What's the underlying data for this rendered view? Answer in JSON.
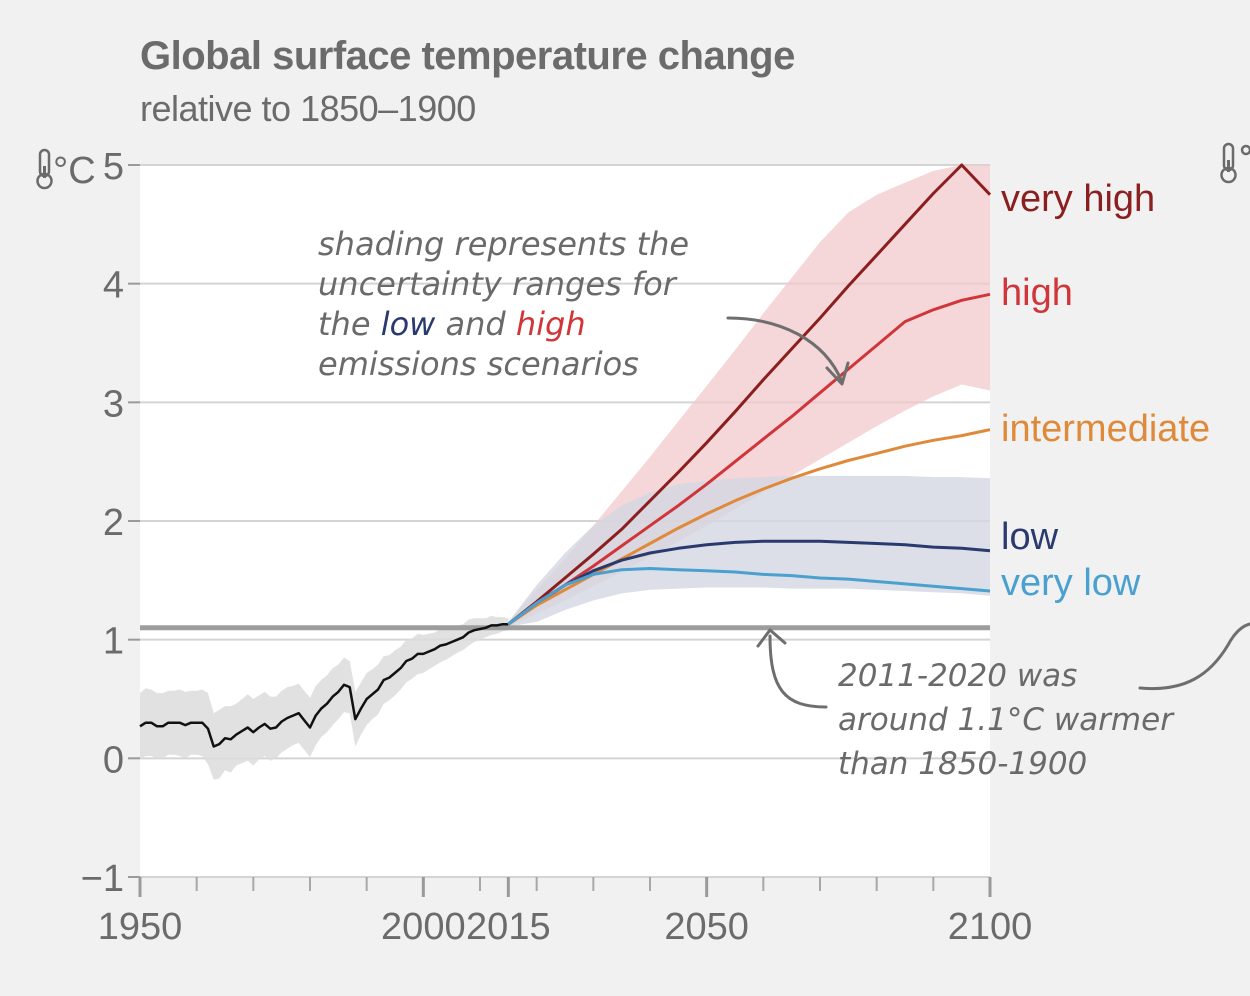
{
  "chart_data": {
    "type": "line",
    "title": "Global surface temperature change",
    "subtitle": "relative to 1850–1900",
    "ylabel_unit": "°C",
    "xlim": [
      1950,
      2100
    ],
    "ylim": [
      -1,
      5
    ],
    "yticks": [
      {
        "value": -1,
        "label": "−1"
      },
      {
        "value": 0,
        "label": "0"
      },
      {
        "value": 1,
        "label": "1"
      },
      {
        "value": 2,
        "label": "2"
      },
      {
        "value": 3,
        "label": "3"
      },
      {
        "value": 4,
        "label": "4"
      },
      {
        "value": 5,
        "label": "5"
      }
    ],
    "xticks_major": [
      {
        "value": 1950,
        "label": "1950"
      },
      {
        "value": 2000,
        "label": "2000"
      },
      {
        "value": 2015,
        "label": "2015"
      },
      {
        "value": 2050,
        "label": "2050"
      },
      {
        "value": 2100,
        "label": "2100"
      }
    ],
    "xticks_minor": [
      1960,
      1970,
      1980,
      1990,
      2010,
      2020,
      2030,
      2040,
      2060,
      2070,
      2080,
      2090
    ],
    "grid": true,
    "reference_line": {
      "value": 1.1
    },
    "historical": {
      "x": [
        1950,
        1951,
        1952,
        1953,
        1954,
        1955,
        1956,
        1957,
        1958,
        1959,
        1960,
        1961,
        1962,
        1963,
        1964,
        1965,
        1966,
        1967,
        1968,
        1969,
        1970,
        1971,
        1972,
        1973,
        1974,
        1975,
        1976,
        1977,
        1978,
        1979,
        1980,
        1981,
        1982,
        1983,
        1984,
        1985,
        1986,
        1987,
        1988,
        1989,
        1990,
        1991,
        1992,
        1993,
        1994,
        1995,
        1996,
        1997,
        1998,
        1999,
        2000,
        2001,
        2002,
        2003,
        2004,
        2005,
        2006,
        2007,
        2008,
        2009,
        2010,
        2011,
        2012,
        2013,
        2014,
        2015
      ],
      "y": [
        0.27,
        0.3,
        0.3,
        0.27,
        0.27,
        0.3,
        0.3,
        0.3,
        0.28,
        0.3,
        0.3,
        0.3,
        0.25,
        0.1,
        0.12,
        0.17,
        0.16,
        0.2,
        0.23,
        0.26,
        0.22,
        0.26,
        0.29,
        0.25,
        0.26,
        0.31,
        0.34,
        0.36,
        0.38,
        0.32,
        0.26,
        0.36,
        0.42,
        0.46,
        0.52,
        0.56,
        0.62,
        0.6,
        0.33,
        0.42,
        0.5,
        0.54,
        0.58,
        0.66,
        0.68,
        0.72,
        0.76,
        0.82,
        0.84,
        0.88,
        0.88,
        0.9,
        0.92,
        0.95,
        0.96,
        0.98,
        1.0,
        1.02,
        1.06,
        1.08,
        1.09,
        1.1,
        1.12,
        1.12,
        1.13,
        1.13
      ],
      "band_lower": [
        -0.01,
        0.02,
        0.02,
        0.0,
        0.0,
        0.03,
        0.03,
        0.02,
        0.0,
        0.03,
        0.03,
        0.02,
        -0.05,
        -0.18,
        -0.17,
        -0.1,
        -0.12,
        -0.06,
        -0.04,
        -0.02,
        -0.06,
        -0.01,
        0.02,
        -0.02,
        0.0,
        0.05,
        0.08,
        0.11,
        0.13,
        0.07,
        0.01,
        0.11,
        0.18,
        0.22,
        0.28,
        0.33,
        0.39,
        0.38,
        0.1,
        0.2,
        0.28,
        0.33,
        0.37,
        0.46,
        0.49,
        0.53,
        0.58,
        0.64,
        0.67,
        0.71,
        0.72,
        0.75,
        0.78,
        0.81,
        0.83,
        0.86,
        0.89,
        0.91,
        0.95,
        0.98,
        1.0,
        1.02,
        1.04,
        1.05,
        1.07,
        1.08
      ],
      "band_upper": [
        0.55,
        0.59,
        0.58,
        0.55,
        0.55,
        0.57,
        0.57,
        0.58,
        0.56,
        0.57,
        0.57,
        0.58,
        0.55,
        0.38,
        0.41,
        0.44,
        0.44,
        0.46,
        0.5,
        0.54,
        0.5,
        0.53,
        0.56,
        0.52,
        0.52,
        0.57,
        0.6,
        0.61,
        0.63,
        0.57,
        0.51,
        0.61,
        0.66,
        0.7,
        0.76,
        0.79,
        0.85,
        0.82,
        0.56,
        0.64,
        0.72,
        0.75,
        0.79,
        0.86,
        0.87,
        0.91,
        0.94,
        1.0,
        1.01,
        1.05,
        1.04,
        1.05,
        1.06,
        1.09,
        1.09,
        1.1,
        1.12,
        1.13,
        1.17,
        1.18,
        1.18,
        1.18,
        1.2,
        1.19,
        1.19,
        1.18
      ]
    },
    "scenario_x": [
      2015,
      2020,
      2025,
      2030,
      2035,
      2040,
      2045,
      2050,
      2055,
      2060,
      2065,
      2070,
      2075,
      2080,
      2085,
      2090,
      2095,
      2100
    ],
    "series": [
      {
        "name": "very high",
        "color": "#8b1e1e",
        "values": [
          1.13,
          1.32,
          1.52,
          1.72,
          1.93,
          2.17,
          2.41,
          2.66,
          2.92,
          3.19,
          3.45,
          3.71,
          3.98,
          4.24,
          4.5,
          4.76,
          5.0,
          4.75
        ]
      },
      {
        "name": "high",
        "color": "#d0353a",
        "values": [
          1.13,
          1.3,
          1.46,
          1.62,
          1.79,
          1.96,
          2.13,
          2.31,
          2.5,
          2.69,
          2.88,
          3.08,
          3.28,
          3.48,
          3.68,
          3.78,
          3.86,
          3.91
        ]
      },
      {
        "name": "intermediate",
        "color": "#df8a3a",
        "values": [
          1.13,
          1.29,
          1.42,
          1.55,
          1.68,
          1.81,
          1.94,
          2.06,
          2.17,
          2.27,
          2.36,
          2.44,
          2.51,
          2.57,
          2.63,
          2.68,
          2.72,
          2.77
        ]
      },
      {
        "name": "low",
        "color": "#2a3a6e",
        "values": [
          1.13,
          1.31,
          1.46,
          1.58,
          1.67,
          1.73,
          1.77,
          1.8,
          1.82,
          1.83,
          1.83,
          1.83,
          1.82,
          1.81,
          1.8,
          1.78,
          1.77,
          1.75
        ]
      },
      {
        "name": "very low",
        "color": "#4aa0cf",
        "values": [
          1.13,
          1.31,
          1.46,
          1.55,
          1.59,
          1.6,
          1.59,
          1.58,
          1.57,
          1.55,
          1.54,
          1.52,
          1.51,
          1.49,
          1.47,
          1.45,
          1.43,
          1.41
        ]
      }
    ],
    "uncertainty_high": {
      "lower": [
        1.11,
        1.22,
        1.33,
        1.45,
        1.57,
        1.7,
        1.83,
        1.96,
        2.1,
        2.24,
        2.38,
        2.52,
        2.66,
        2.8,
        2.93,
        3.05,
        3.15,
        3.1
      ],
      "upper": [
        1.15,
        1.42,
        1.68,
        1.96,
        2.25,
        2.54,
        2.84,
        3.14,
        3.44,
        3.75,
        4.05,
        4.35,
        4.6,
        4.75,
        4.85,
        4.95,
        5.0,
        5.0
      ],
      "color": "#f2c9cc"
    },
    "uncertainty_low": {
      "lower": [
        1.11,
        1.15,
        1.25,
        1.33,
        1.39,
        1.42,
        1.43,
        1.44,
        1.44,
        1.44,
        1.43,
        1.43,
        1.43,
        1.42,
        1.41,
        1.4,
        1.39,
        1.37
      ],
      "upper": [
        1.15,
        1.46,
        1.73,
        1.96,
        2.13,
        2.24,
        2.31,
        2.34,
        2.36,
        2.37,
        2.38,
        2.38,
        2.38,
        2.38,
        2.38,
        2.37,
        2.37,
        2.36
      ],
      "color": "#d3d7e1"
    }
  },
  "annotations": {
    "shading_note": {
      "lines": [
        "shading represents the",
        "uncertainty ranges for"
      ],
      "line3": {
        "a": "the ",
        "low": "low",
        "b": " and ",
        "high": "high"
      },
      "line4": "emissions scenarios"
    },
    "reference_note": {
      "lines": [
        "2011-2020 was",
        "around 1.1°C warmer",
        "than 1850-1900"
      ]
    }
  },
  "colors": {
    "text_grey": "#6b6b6b",
    "plot_bg": "#ffffff",
    "page_bg": "#f1f1f1",
    "low_word": "#2a3a6e",
    "high_word": "#d0353a"
  },
  "icons": [
    "thermometer-icon"
  ]
}
